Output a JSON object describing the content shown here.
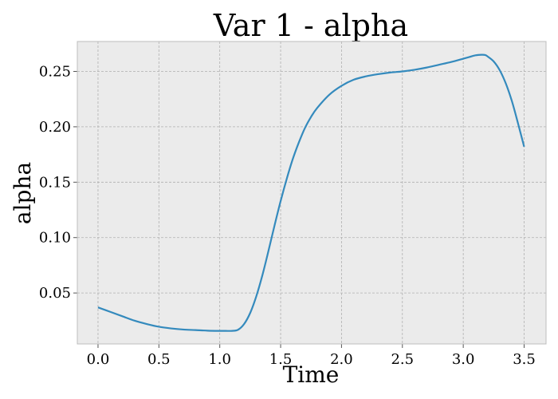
{
  "chart_data": {
    "type": "line",
    "title": "Var 1 - alpha",
    "xlabel": "Time",
    "ylabel": "alpha",
    "xlim": [
      -0.17,
      3.68
    ],
    "ylim": [
      0.004,
      0.277
    ],
    "grid": true,
    "x_ticks": [
      0.0,
      0.5,
      1.0,
      1.5,
      2.0,
      2.5,
      3.0,
      3.5
    ],
    "x_tick_labels": [
      "0.0",
      "0.5",
      "1.0",
      "1.5",
      "2.0",
      "2.5",
      "3.0",
      "3.5"
    ],
    "y_ticks": [
      0.05,
      0.1,
      0.15,
      0.2,
      0.25
    ],
    "y_tick_labels": [
      "0.05",
      "0.10",
      "0.15",
      "0.20",
      "0.25"
    ],
    "series": [
      {
        "color": "#348abd",
        "x": [
          0.0,
          0.1,
          0.2,
          0.3,
          0.4,
          0.5,
          0.6,
          0.7,
          0.8,
          0.9,
          1.0,
          1.05,
          1.1,
          1.15,
          1.2,
          1.25,
          1.3,
          1.35,
          1.4,
          1.45,
          1.5,
          1.55,
          1.6,
          1.65,
          1.7,
          1.75,
          1.8,
          1.9,
          2.0,
          2.1,
          2.2,
          2.3,
          2.4,
          2.5,
          2.6,
          2.7,
          2.8,
          2.9,
          3.0,
          3.05,
          3.1,
          3.15,
          3.18,
          3.2,
          3.25,
          3.3,
          3.35,
          3.4,
          3.45,
          3.5
        ],
        "y": [
          0.037,
          0.033,
          0.029,
          0.025,
          0.022,
          0.0195,
          0.018,
          0.017,
          0.0165,
          0.016,
          0.0158,
          0.0158,
          0.0158,
          0.0168,
          0.022,
          0.032,
          0.047,
          0.066,
          0.088,
          0.111,
          0.133,
          0.153,
          0.171,
          0.186,
          0.199,
          0.209,
          0.217,
          0.229,
          0.237,
          0.2425,
          0.2455,
          0.2475,
          0.249,
          0.25,
          0.2515,
          0.2535,
          0.256,
          0.2585,
          0.2615,
          0.263,
          0.2645,
          0.265,
          0.2648,
          0.2635,
          0.259,
          0.251,
          0.239,
          0.223,
          0.203,
          0.182
        ]
      }
    ]
  }
}
